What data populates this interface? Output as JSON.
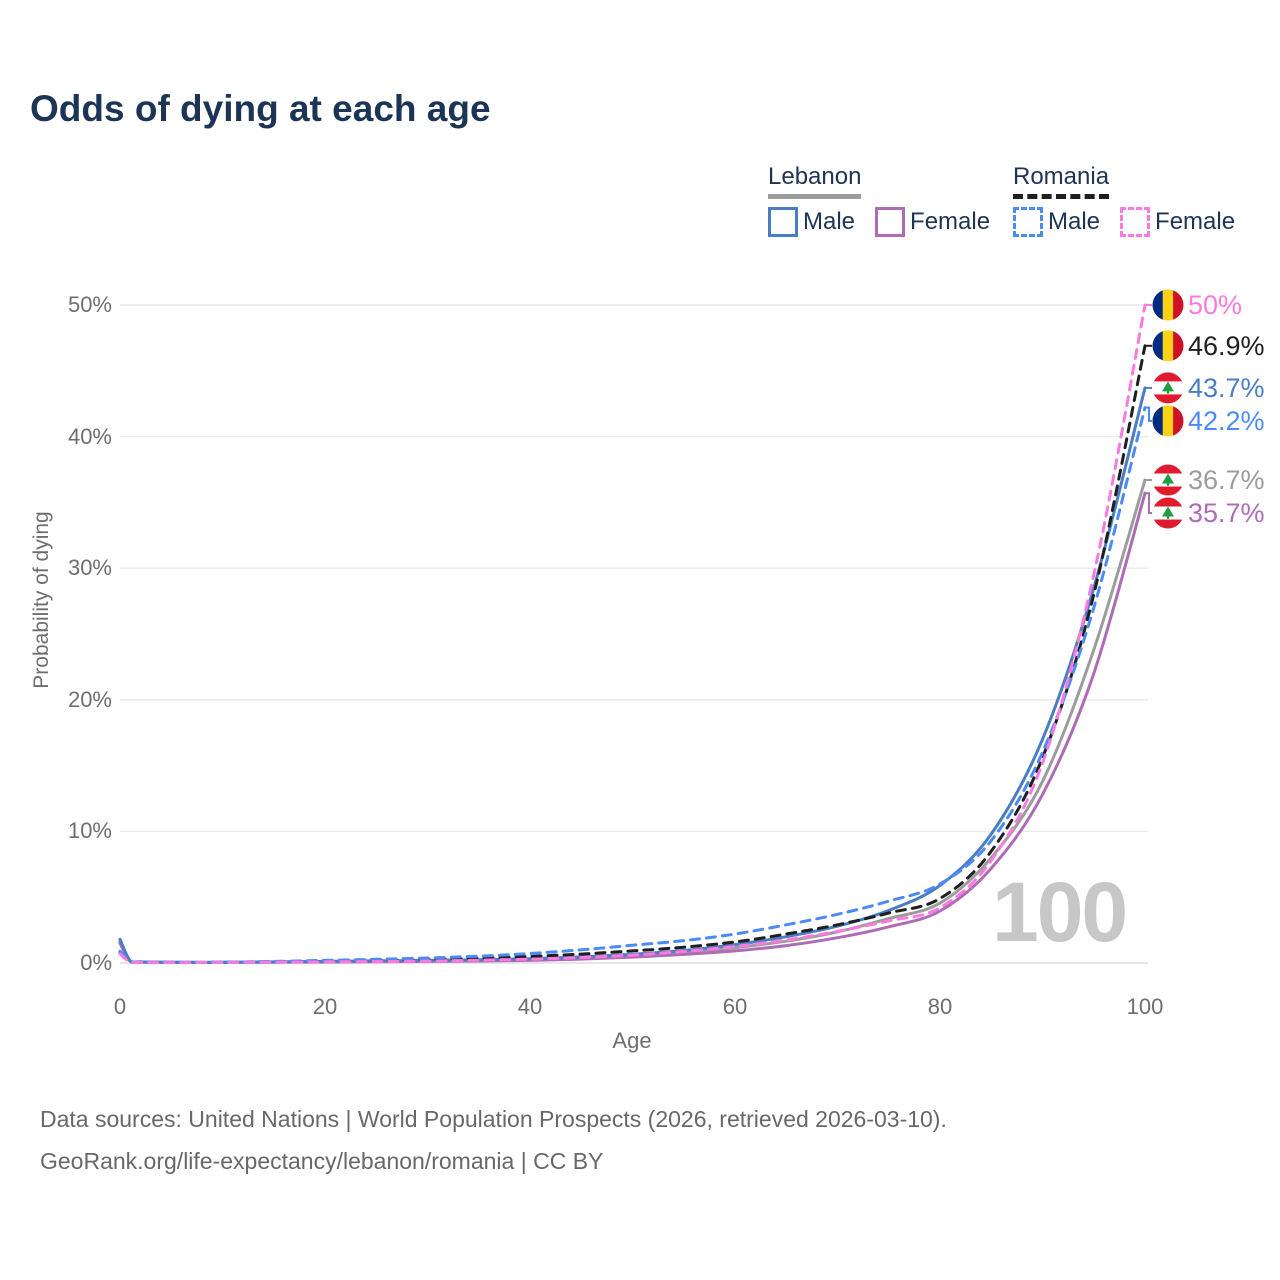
{
  "title": "Odds of dying at each age",
  "legend": {
    "groups": [
      {
        "id": "lebanon",
        "label": "Lebanon",
        "line_style": "solid",
        "color": "#9c9c9c",
        "items": [
          {
            "label": "Male",
            "color": "#4a7dc4"
          },
          {
            "label": "Female",
            "color": "#ad6cb5"
          }
        ]
      },
      {
        "id": "romania",
        "label": "Romania",
        "line_style": "dashed",
        "color": "#1f1f1f",
        "items": [
          {
            "label": "Male",
            "color": "#4c8bf5"
          },
          {
            "label": "Female",
            "color": "#fb7ae1"
          }
        ]
      }
    ]
  },
  "chart_data": {
    "type": "line",
    "title": "Odds of dying at each age",
    "xlabel": "Age",
    "ylabel": "Probability of dying",
    "xlim": [
      0,
      100
    ],
    "ylim": [
      0,
      50
    ],
    "grid": true,
    "x_ticks": [
      0,
      20,
      40,
      60,
      80,
      100
    ],
    "y_ticks": [
      "0%",
      "10%",
      "20%",
      "30%",
      "40%",
      "50%"
    ],
    "watermark": "100",
    "x": [
      0,
      1,
      2,
      5,
      10,
      15,
      20,
      25,
      30,
      35,
      40,
      45,
      50,
      55,
      60,
      65,
      70,
      75,
      80,
      85,
      90,
      95,
      100
    ],
    "series": [
      {
        "name": "Lebanon",
        "country": "lebanon",
        "sex": "total",
        "color": "#9c9c9c",
        "dash": "solid",
        "end_label": "36.7%",
        "flag": "lebanon",
        "values": [
          1.65,
          0.13,
          0.07,
          0.05,
          0.05,
          0.07,
          0.1,
          0.13,
          0.16,
          0.2,
          0.26,
          0.38,
          0.56,
          0.8,
          1.16,
          1.66,
          2.36,
          3.38,
          4.55,
          8.0,
          13.8,
          23.8,
          36.7
        ]
      },
      {
        "name": "Lebanon Female",
        "country": "lebanon",
        "sex": "female",
        "color": "#ad6cb5",
        "dash": "solid",
        "end_label": "35.7%",
        "flag": "lebanon",
        "values": [
          1.5,
          0.12,
          0.06,
          0.04,
          0.04,
          0.05,
          0.07,
          0.09,
          0.12,
          0.15,
          0.2,
          0.3,
          0.45,
          0.65,
          0.92,
          1.32,
          1.92,
          2.75,
          3.95,
          7.2,
          12.8,
          22.0,
          35.7
        ]
      },
      {
        "name": "Lebanon Male",
        "country": "lebanon",
        "sex": "male",
        "color": "#4a7dc4",
        "dash": "solid",
        "end_label": "43.7%",
        "flag": "lebanon",
        "values": [
          1.8,
          0.15,
          0.08,
          0.06,
          0.05,
          0.08,
          0.12,
          0.16,
          0.2,
          0.25,
          0.32,
          0.46,
          0.66,
          0.95,
          1.4,
          2.0,
          2.8,
          4.0,
          5.9,
          9.8,
          17.0,
          28.5,
          43.7
        ]
      },
      {
        "name": "Romania",
        "country": "romania",
        "sex": "total",
        "color": "#1f1f1f",
        "dash": "dashed",
        "end_label": "46.9%",
        "flag": "romania",
        "values": [
          0.8,
          0.07,
          0.05,
          0.04,
          0.05,
          0.09,
          0.14,
          0.19,
          0.26,
          0.36,
          0.5,
          0.68,
          0.92,
          1.2,
          1.6,
          2.2,
          2.9,
          3.8,
          4.9,
          8.5,
          15.6,
          28.0,
          46.9
        ]
      },
      {
        "name": "Romania Male",
        "country": "romania",
        "sex": "male",
        "color": "#4c8bf5",
        "dash": "dashed",
        "end_label": "42.2%",
        "flag": "romania",
        "values": [
          0.9,
          0.08,
          0.06,
          0.05,
          0.06,
          0.12,
          0.2,
          0.28,
          0.38,
          0.52,
          0.72,
          1.0,
          1.35,
          1.7,
          2.2,
          2.9,
          3.7,
          4.7,
          6.0,
          9.3,
          16.0,
          27.0,
          42.2
        ]
      },
      {
        "name": "Romania Female",
        "country": "romania",
        "sex": "female",
        "color": "#fb7ae1",
        "dash": "dashed",
        "end_label": "50%",
        "flag": "romania",
        "values": [
          0.7,
          0.06,
          0.04,
          0.03,
          0.04,
          0.06,
          0.08,
          0.11,
          0.15,
          0.21,
          0.29,
          0.42,
          0.6,
          0.88,
          1.25,
          1.75,
          2.4,
          3.2,
          4.2,
          7.8,
          15.2,
          29.5,
          50.0
        ]
      }
    ]
  },
  "flag_colors": {
    "romania": {
      "blue": "#002B7F",
      "yellow": "#FCD116",
      "red": "#CE1126"
    },
    "lebanon": {
      "red": "#E01B2F",
      "white": "#ffffff",
      "green": "#1f9e3f"
    }
  },
  "footer": {
    "line1": "Data sources: United Nations | World Population Prospects (2026, retrieved 2026-03-10).",
    "line2": "GeoRank.org/life-expectancy/lebanon/romania | CC BY"
  }
}
